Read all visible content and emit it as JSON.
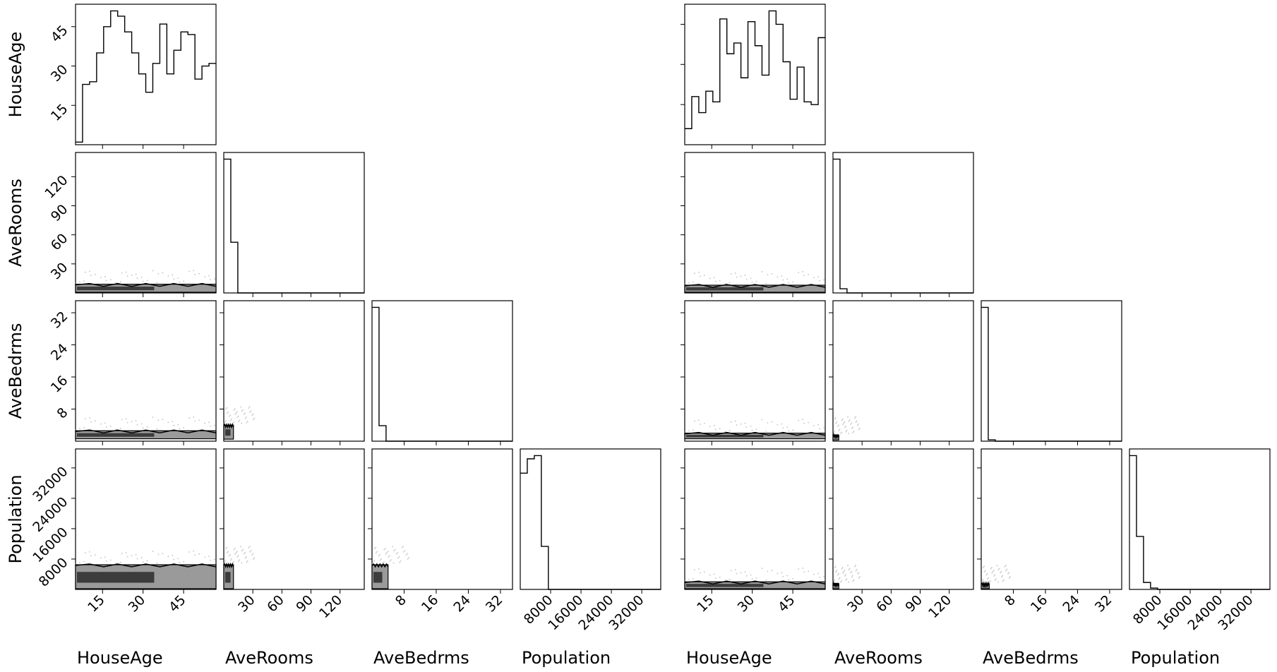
{
  "chart_data": {
    "type": "corner-plot",
    "colors": {
      "line": "#000000",
      "background": "#ffffff",
      "contour_mid": "#9a9a9a",
      "contour_dark": "#3c3c3c",
      "scatter": "#888888"
    },
    "variables": [
      {
        "name": "HouseAge",
        "range": [
          5,
          57
        ],
        "ticks": [
          15,
          30,
          45
        ],
        "tick_labels": [
          "15",
          "30",
          "45"
        ]
      },
      {
        "name": "AveRooms",
        "range": [
          0,
          145
        ],
        "ticks": [
          30,
          60,
          90,
          120
        ],
        "tick_labels": [
          "30",
          "60",
          "90",
          "120"
        ]
      },
      {
        "name": "AveBedrms",
        "range": [
          0,
          35
        ],
        "ticks": [
          8,
          16,
          24,
          32
        ],
        "tick_labels": [
          "8",
          "16",
          "24",
          "32"
        ]
      },
      {
        "name": "Population",
        "range": [
          0,
          37000
        ],
        "ticks": [
          8000,
          16000,
          24000,
          32000
        ],
        "tick_labels": [
          "8000",
          "16000",
          "24000",
          "32000"
        ]
      }
    ],
    "corners": [
      {
        "name": "left",
        "histograms": [
          [
            1,
            23,
            24,
            35,
            45,
            51,
            49,
            43,
            35,
            27,
            20,
            31,
            46,
            27,
            36,
            43,
            42,
            25,
            30,
            31
          ],
          [
            95,
            36,
            0,
            0,
            0,
            0,
            0,
            0,
            0,
            0,
            0,
            0,
            0,
            0,
            0,
            0,
            0,
            0,
            0,
            0
          ],
          [
            95,
            11,
            0,
            0,
            0,
            0,
            0,
            0,
            0,
            0,
            0,
            0,
            0,
            0,
            0,
            0,
            0,
            0,
            0,
            0
          ],
          [
            73,
            82,
            84,
            27,
            0,
            0,
            0,
            0,
            0,
            0,
            0,
            0,
            0,
            0,
            0,
            0,
            0,
            0,
            0,
            0
          ]
        ],
        "bands": [
          {
            "row": 1,
            "col": 0,
            "top": 9,
            "bottom": 0
          },
          {
            "row": 2,
            "col": 0,
            "top": 2.6,
            "bottom": 0.6
          },
          {
            "row": 2,
            "col": 1,
            "x_max": 10,
            "top": 4,
            "bottom": 0.5
          },
          {
            "row": 3,
            "col": 0,
            "top": 6500,
            "bottom": 0
          },
          {
            "row": 3,
            "col": 1,
            "x_max": 10,
            "top": 6500,
            "bottom": 0
          },
          {
            "row": 3,
            "col": 2,
            "x_max": 4,
            "top": 6500,
            "bottom": 0
          }
        ]
      },
      {
        "name": "right",
        "histograms": [
          [
            6,
            18,
            12,
            20,
            16,
            47,
            34,
            38,
            25,
            46,
            37,
            26,
            50,
            45,
            31,
            17,
            29,
            16,
            15,
            40
          ],
          [
            96,
            3,
            0,
            0,
            0,
            0,
            0,
            0,
            0,
            0,
            0,
            0,
            0,
            0,
            0,
            0,
            0,
            0,
            0,
            0
          ],
          [
            97,
            1,
            0,
            0,
            0,
            0,
            0,
            0,
            0,
            0,
            0,
            0,
            0,
            0,
            0,
            0,
            0,
            0,
            0,
            0
          ],
          [
            96,
            38,
            5,
            1,
            0,
            0,
            0,
            0,
            0,
            0,
            0,
            0,
            0,
            0,
            0,
            0,
            0,
            0,
            0,
            0
          ]
        ],
        "bands": [
          {
            "row": 1,
            "col": 0,
            "top": 8,
            "bottom": 0
          },
          {
            "row": 2,
            "col": 0,
            "top": 2.0,
            "bottom": 0.6
          },
          {
            "row": 2,
            "col": 1,
            "x_max": 6,
            "top": 1.5,
            "bottom": 0.3
          },
          {
            "row": 3,
            "col": 0,
            "top": 2000,
            "bottom": 0
          },
          {
            "row": 3,
            "col": 1,
            "x_max": 6,
            "top": 1500,
            "bottom": 0
          },
          {
            "row": 3,
            "col": 2,
            "x_max": 2,
            "top": 1500,
            "bottom": 0
          }
        ]
      }
    ]
  }
}
